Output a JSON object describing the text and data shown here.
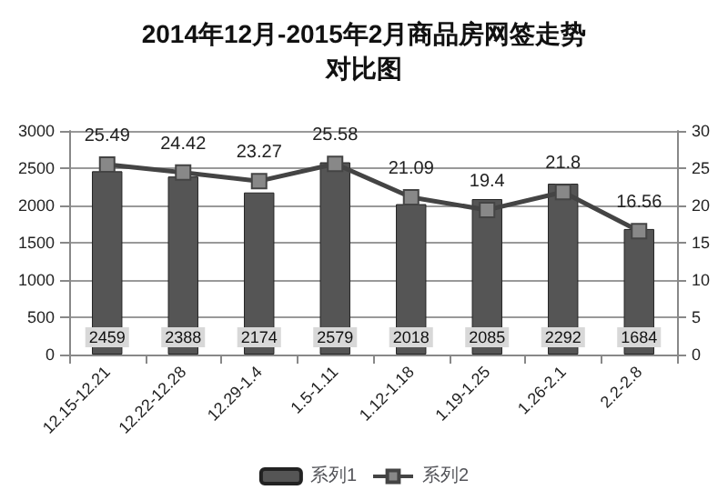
{
  "chart_data": {
    "type": "bar",
    "title": "2014年12月-2015年2月商品房网签走势对比图",
    "categories": [
      "12.15-12.21",
      "12.22-12.28",
      "12.29-1.4",
      "1.5-1.11",
      "1.12-1.18",
      "1.19-1.25",
      "1.26-2.1",
      "2.2-2.8"
    ],
    "series": [
      {
        "name": "系列1",
        "color": "#555555",
        "values": [
          2459,
          2388,
          2174,
          2579,
          2018,
          2085,
          2292,
          1684
        ]
      },
      {
        "name": "系列2",
        "type": "line",
        "axis": "y2",
        "color": "#444444",
        "marker": "square",
        "values": [
          25.49,
          24.42,
          23.27,
          25.58,
          21.09,
          19.4,
          21.8,
          16.56
        ]
      }
    ],
    "ylim": [
      0,
      3000
    ],
    "yticks": [
      0,
      500,
      1000,
      1500,
      2000,
      2500,
      3000
    ],
    "y2lim": [
      0,
      30
    ],
    "y2ticks": [
      0,
      5,
      10,
      15,
      20,
      25,
      30
    ],
    "grid": "y",
    "legend": "bottom",
    "data_labels": true
  }
}
